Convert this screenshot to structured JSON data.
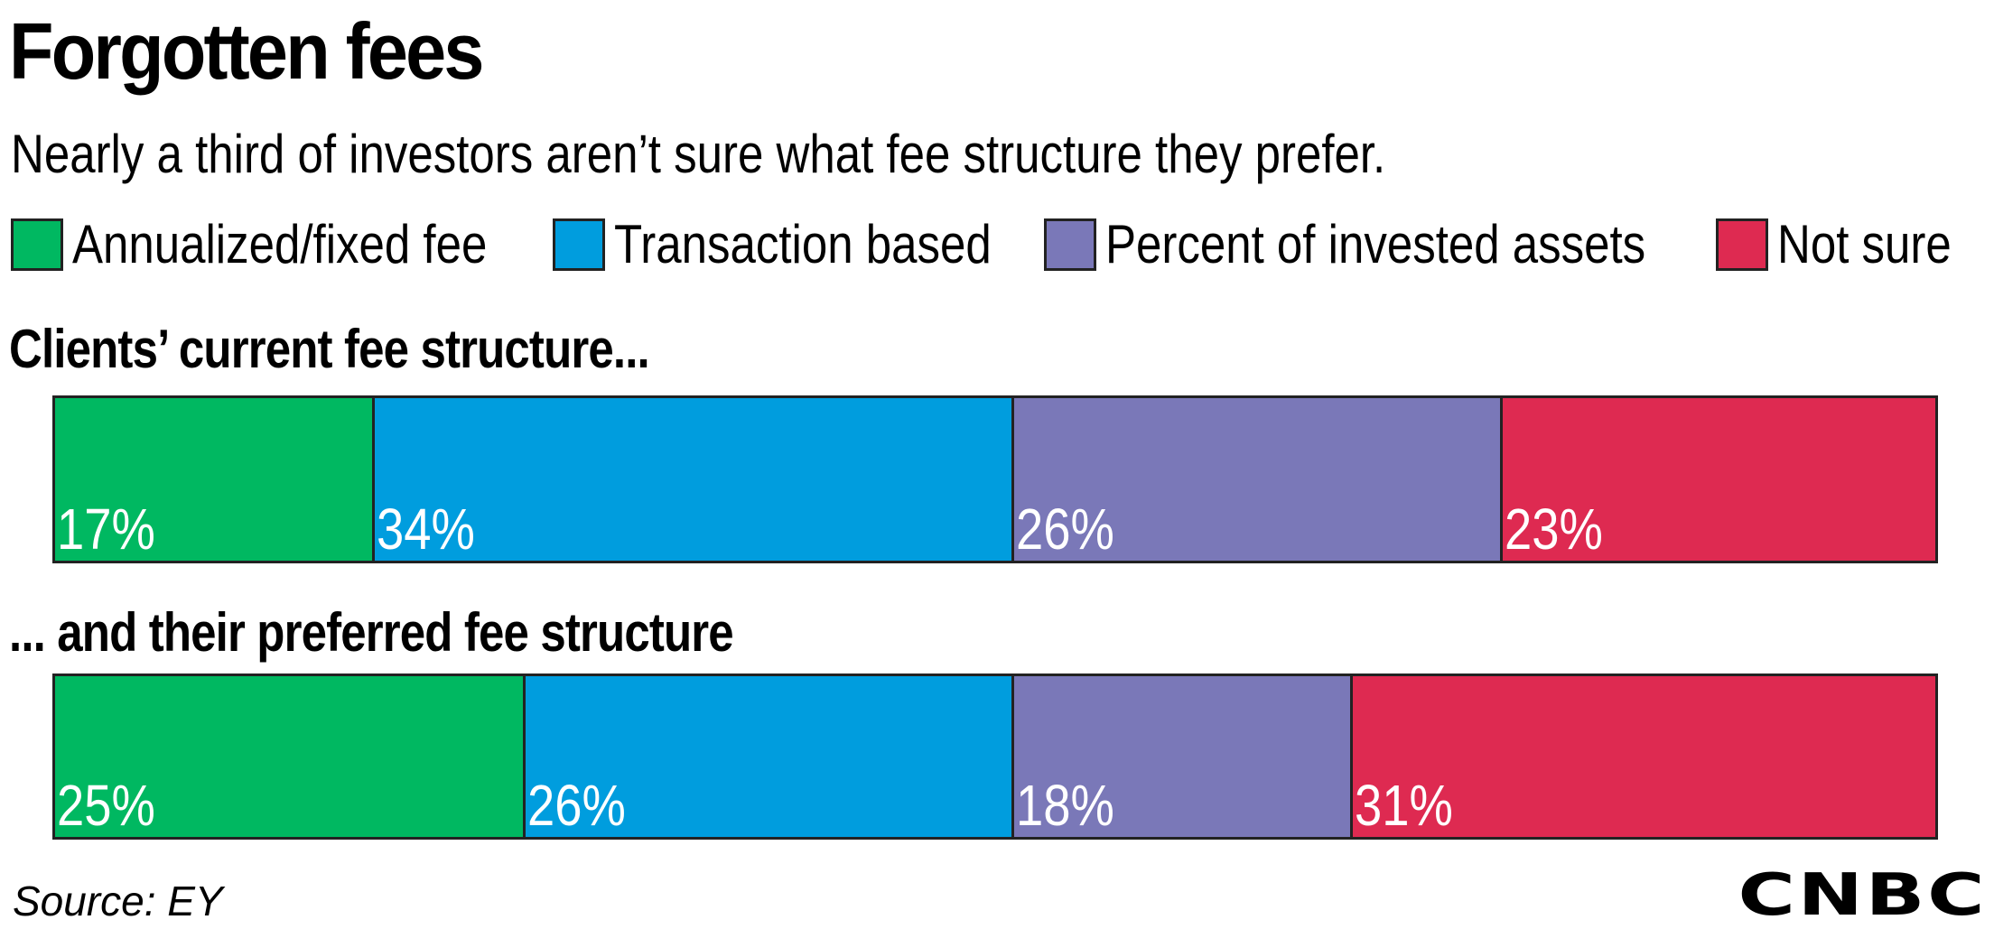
{
  "header": {
    "title": "Forgotten fees",
    "subtitle": "Nearly a third of investors aren’t sure what fee structure they prefer."
  },
  "legend": [
    {
      "label": "Annualized/fixed fee",
      "color": "#00b861"
    },
    {
      "label": "Transaction based",
      "color": "#009dde"
    },
    {
      "label": "Percent of invested assets",
      "color": "#7a78b8"
    },
    {
      "label": "Not sure",
      "color": "#de2a51"
    }
  ],
  "chart_data": {
    "type": "bar",
    "stacked": true,
    "orientation": "horizontal",
    "categories": [
      "Clients’ current fee structure...",
      "... and their preferred fee structure"
    ],
    "series": [
      {
        "name": "Annualized/fixed fee",
        "values": [
          17,
          25
        ],
        "color": "#00b861"
      },
      {
        "name": "Transaction based",
        "values": [
          34,
          26
        ],
        "color": "#009dde"
      },
      {
        "name": "Percent of invested assets",
        "values": [
          26,
          18
        ],
        "color": "#7a78b8"
      },
      {
        "name": "Not sure",
        "values": [
          23,
          31
        ],
        "color": "#de2a51"
      }
    ],
    "value_labels": [
      [
        "17%",
        "34%",
        "26%",
        "23%"
      ],
      [
        "25%",
        "26%",
        "18%",
        "31%"
      ]
    ],
    "xlim": [
      0,
      100
    ],
    "legend_position": "top",
    "grid": false
  },
  "footer": {
    "source": "Source: EY",
    "logo_text": "CNBC"
  }
}
